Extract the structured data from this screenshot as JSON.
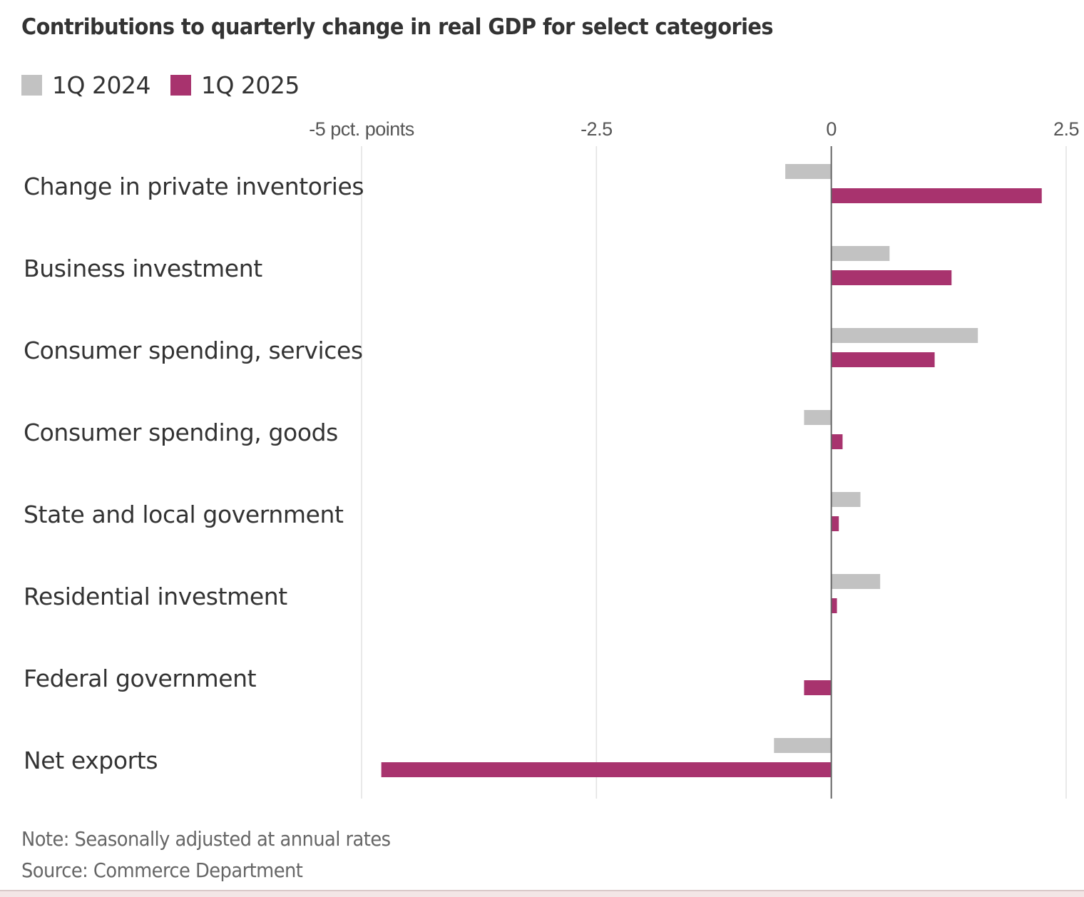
{
  "chart_data": {
    "type": "bar",
    "orientation": "horizontal",
    "title": "Contributions to quarterly change in real GDP for select categories",
    "xlabel": "pct. points",
    "ylabel": "",
    "xlim": [
      -5,
      2.5
    ],
    "xticks": [
      -5,
      -2.5,
      0,
      2.5
    ],
    "xtick_labels": [
      "-5 pct. points",
      "-2.5",
      "0",
      "2.5"
    ],
    "grid": true,
    "legend_position": "top-left",
    "categories": [
      "Change in private inventories",
      "Business investment",
      "Consumer spending, services",
      "Consumer spending, goods",
      "State and local government",
      "Residential investment",
      "Federal government",
      "Net exports"
    ],
    "series": [
      {
        "name": "1Q 2024",
        "color": "#c2c2c2",
        "values": [
          -0.49,
          0.62,
          1.56,
          -0.29,
          0.31,
          0.52,
          0.0,
          -0.61
        ]
      },
      {
        "name": "1Q 2025",
        "color": "#a8336e",
        "values": [
          2.24,
          1.28,
          1.1,
          0.12,
          0.08,
          0.06,
          -0.29,
          -4.79
        ]
      }
    ],
    "note": "Note: Seasonally adjusted at annual rates",
    "source": "Source: Commerce Department"
  }
}
